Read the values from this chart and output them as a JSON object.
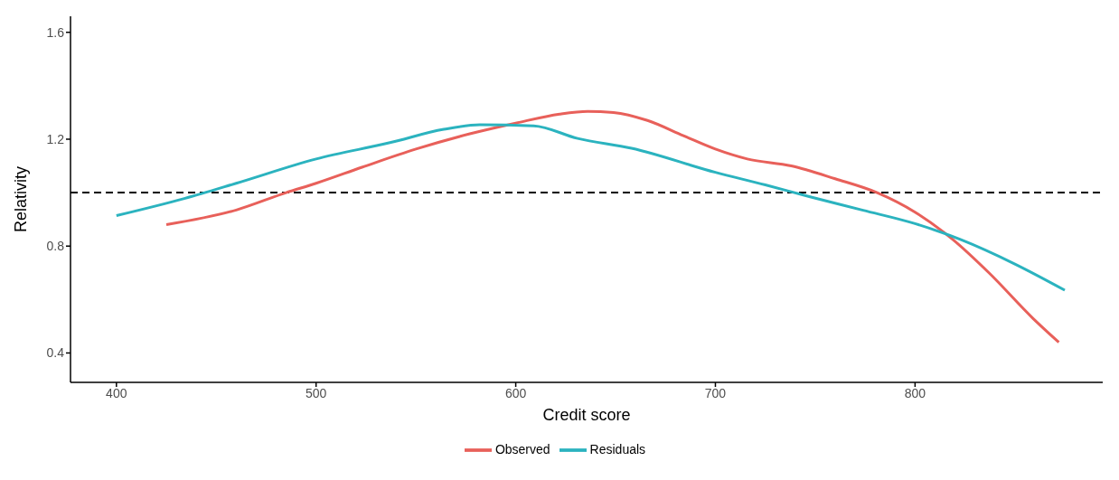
{
  "chart_data": {
    "type": "line",
    "xlabel": "Credit score",
    "ylabel": "Relativity",
    "xlim": [
      377,
      894
    ],
    "xticks": [
      400,
      500,
      600,
      700,
      800
    ],
    "ylim": [
      0.29,
      1.66
    ],
    "yticks": [
      0.4,
      0.8,
      1.2,
      1.6
    ],
    "grid": false,
    "legend": "bottom",
    "line_style": "solid",
    "marker": "none",
    "ref_lines": [
      {
        "axis": "y",
        "value": 1,
        "label": null,
        "color": "#000000",
        "line_style": "dashed"
      }
    ],
    "series": [
      {
        "name": "Observed",
        "color": "#e8605a",
        "x": [
          425,
          460,
          485,
          500,
          523,
          550,
          577,
          600,
          622,
          636,
          649,
          666,
          684,
          700,
          716,
          738,
          760,
          781,
          800,
          819,
          837,
          859,
          872
        ],
        "values": [
          0.88,
          0.935,
          1.0,
          1.035,
          1.095,
          1.163,
          1.22,
          1.26,
          1.294,
          1.304,
          1.3,
          1.27,
          1.213,
          1.163,
          1.126,
          1.1,
          1.052,
          1.0,
          0.927,
          0.824,
          0.7,
          0.53,
          0.44
        ]
      },
      {
        "name": "Residuals",
        "color": "#2bb3bf",
        "x": [
          400,
          434,
          460,
          500,
          537,
          564,
          582,
          609,
          631,
          658,
          700,
          725,
          747,
          774,
          800,
          823,
          850,
          875
        ],
        "values": [
          0.914,
          0.978,
          1.035,
          1.126,
          1.187,
          1.237,
          1.254,
          1.25,
          1.203,
          1.166,
          1.076,
          1.029,
          0.985,
          0.934,
          0.884,
          0.824,
          0.733,
          0.635
        ]
      }
    ]
  }
}
